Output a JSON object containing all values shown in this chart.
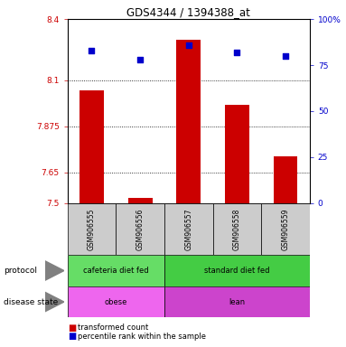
{
  "title": "GDS4344 / 1394388_at",
  "samples": [
    "GSM906555",
    "GSM906556",
    "GSM906557",
    "GSM906558",
    "GSM906559"
  ],
  "bar_values": [
    8.05,
    7.525,
    8.3,
    7.98,
    7.73
  ],
  "scatter_values": [
    83,
    78,
    86,
    82,
    80
  ],
  "ylim_left": [
    7.5,
    8.4
  ],
  "ylim_right": [
    0,
    100
  ],
  "yticks_left": [
    7.5,
    7.65,
    7.875,
    8.1,
    8.4
  ],
  "ytick_labels_left": [
    "7.5",
    "7.65",
    "7.875",
    "8.1",
    "8.4"
  ],
  "yticks_right": [
    0,
    25,
    50,
    75,
    100
  ],
  "ytick_labels_right": [
    "0",
    "25",
    "50",
    "75",
    "100%"
  ],
  "bar_color": "#cc0000",
  "scatter_color": "#0000cc",
  "bar_width": 0.5,
  "protocol_label": "protocol",
  "disease_label": "disease state",
  "legend_bar_label": "transformed count",
  "legend_scatter_label": "percentile rank within the sample",
  "grid_yticks": [
    7.65,
    7.875,
    8.1
  ],
  "tick_color_left": "#cc0000",
  "tick_color_right": "#0000cc",
  "prot_color1": "#66dd66",
  "prot_color2": "#44cc44",
  "dis_color1": "#ee66ee",
  "dis_color2": "#cc44cc",
  "sample_box_color": "#cccccc"
}
